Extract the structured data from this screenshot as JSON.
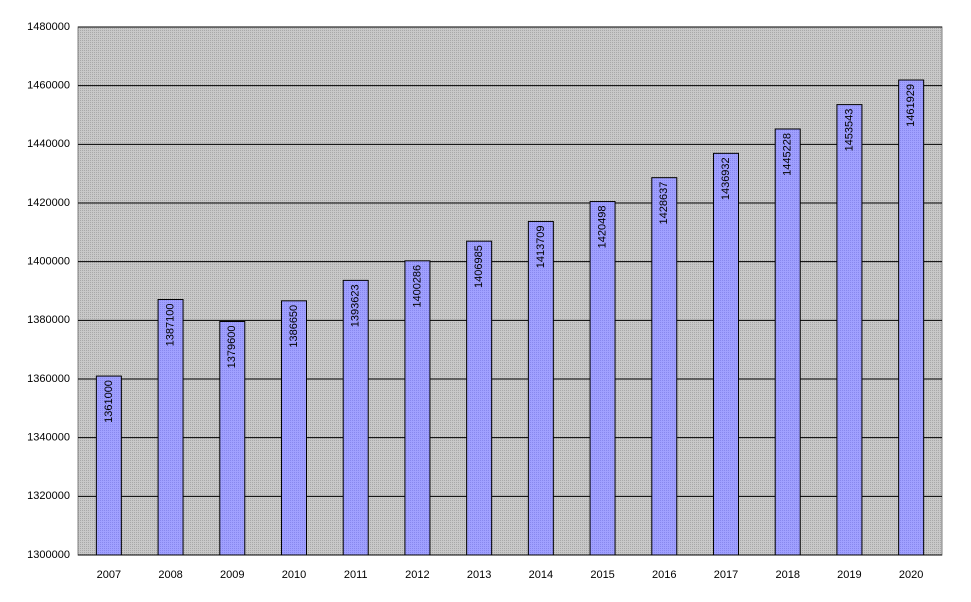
{
  "chart_data": {
    "type": "bar",
    "categories": [
      "2007",
      "2008",
      "2009",
      "2010",
      "2011",
      "2012",
      "2013",
      "2014",
      "2015",
      "2016",
      "2017",
      "2018",
      "2019",
      "2020"
    ],
    "values": [
      1361000,
      1387100,
      1379600,
      1386650,
      1393623,
      1400286,
      1406985,
      1413709,
      1420498,
      1428637,
      1436932,
      1445228,
      1453543,
      1461929
    ],
    "color": "#9999ff",
    "ylim": [
      1300000,
      1480000
    ],
    "yticks": [
      1300000,
      1320000,
      1340000,
      1360000,
      1380000,
      1400000,
      1420000,
      1440000,
      1460000,
      1480000
    ],
    "grid": true
  }
}
